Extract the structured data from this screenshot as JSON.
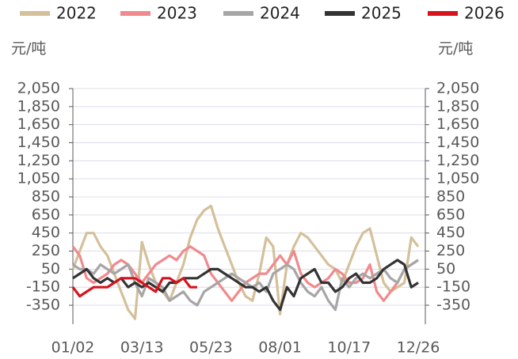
{
  "chart_data": {
    "type": "line",
    "y_label": "元/吨",
    "y2_label": "元/吨",
    "categories": [
      "01/02",
      null,
      null,
      null,
      null,
      null,
      null,
      null,
      null,
      null,
      "03/13",
      null,
      null,
      null,
      null,
      null,
      null,
      null,
      null,
      null,
      "05/23",
      null,
      null,
      null,
      null,
      null,
      null,
      null,
      null,
      null,
      "08/01",
      null,
      null,
      null,
      null,
      null,
      null,
      null,
      null,
      null,
      "10/17",
      null,
      null,
      null,
      null,
      null,
      null,
      null,
      null,
      null,
      "12/26"
    ],
    "ylim": [
      -560,
      2050
    ],
    "yticks": [
      {
        "value": 2050,
        "label": "2,050"
      },
      {
        "value": 1850,
        "label": "1,850"
      },
      {
        "value": 1650,
        "label": "1,650"
      },
      {
        "value": 1450,
        "label": "1,450"
      },
      {
        "value": 1250,
        "label": "1,250"
      },
      {
        "value": 1050,
        "label": "1,050"
      },
      850,
      650,
      450,
      250,
      50,
      -150,
      -350
    ],
    "y2lim": [
      -560,
      2050
    ],
    "y2ticks": [
      {
        "value": 2050,
        "label": "2,050"
      },
      {
        "value": 1850,
        "label": "1,850"
      },
      {
        "value": 1650,
        "label": "1,650"
      },
      {
        "value": 1450,
        "label": "1,450"
      },
      {
        "value": 1250,
        "label": "1,250"
      },
      {
        "value": 1050,
        "label": "1,050"
      },
      850,
      650,
      450,
      250,
      50,
      -150,
      -350
    ],
    "grid": true,
    "series": [
      {
        "name": "2022",
        "color": "#d4c09a",
        "values": [
          50,
          250,
          450,
          450,
          300,
          200,
          0,
          -200,
          -400,
          -500,
          350,
          100,
          -100,
          -200,
          -300,
          -100,
          100,
          400,
          600,
          700,
          750,
          500,
          300,
          100,
          -100,
          -250,
          -300,
          0,
          400,
          300,
          -450,
          100,
          300,
          450,
          400,
          300,
          200,
          100,
          50,
          -100,
          100,
          300,
          450,
          500,
          200,
          -100,
          -200,
          -150,
          -100,
          400,
          300
        ]
      },
      {
        "name": "2023",
        "color": "#f08a8e",
        "values": [
          300,
          200,
          -50,
          -100,
          -50,
          0,
          100,
          150,
          100,
          0,
          -100,
          0,
          100,
          150,
          200,
          150,
          250,
          300,
          250,
          200,
          0,
          -100,
          -200,
          -300,
          -200,
          -100,
          -50,
          0,
          0,
          100,
          200,
          100,
          250,
          0,
          -100,
          -150,
          -100,
          -50,
          50,
          0,
          -100,
          -100,
          -50,
          100,
          -200,
          -300,
          -200,
          -100,
          50,
          100,
          150
        ]
      },
      {
        "name": "2024",
        "color": "#a6a6a6",
        "values": [
          100,
          50,
          50,
          0,
          100,
          50,
          0,
          50,
          100,
          -100,
          -250,
          -50,
          -100,
          -150,
          -300,
          -250,
          -200,
          -300,
          -350,
          -200,
          -150,
          -100,
          -50,
          0,
          -50,
          -100,
          -150,
          -100,
          -200,
          0,
          50,
          100,
          50,
          -100,
          -200,
          -250,
          -150,
          -300,
          -400,
          -50,
          -150,
          -50,
          0,
          -50,
          0,
          50,
          -50,
          -100,
          50,
          100,
          150
        ]
      },
      {
        "name": "2025",
        "color": "#333333",
        "values": [
          -50,
          0,
          50,
          -50,
          -100,
          -50,
          -100,
          -50,
          -150,
          -100,
          -150,
          -100,
          -150,
          -200,
          -100,
          -100,
          -50,
          -50,
          -50,
          0,
          50,
          50,
          0,
          -50,
          -100,
          -150,
          -150,
          -200,
          -150,
          -300,
          -400,
          -150,
          -250,
          -50,
          0,
          50,
          -100,
          -100,
          -200,
          -150,
          -50,
          0,
          -100,
          -100,
          -50,
          50,
          100,
          150,
          100,
          -150,
          -100
        ]
      },
      {
        "name": "2026",
        "color": "#d7141e",
        "values": [
          -150,
          -250,
          -200,
          -150,
          -150,
          -150,
          -100,
          -50,
          -50,
          -50,
          -100,
          -150,
          -200,
          -50,
          -50,
          -100,
          -50,
          -150,
          -150,
          null,
          null,
          null,
          null,
          null,
          null,
          null,
          null,
          null,
          null,
          null,
          null,
          null,
          null,
          null,
          null,
          null,
          null,
          null,
          null,
          null,
          null,
          null,
          null,
          null,
          null,
          null,
          null,
          null,
          null,
          null,
          null
        ]
      }
    ]
  }
}
